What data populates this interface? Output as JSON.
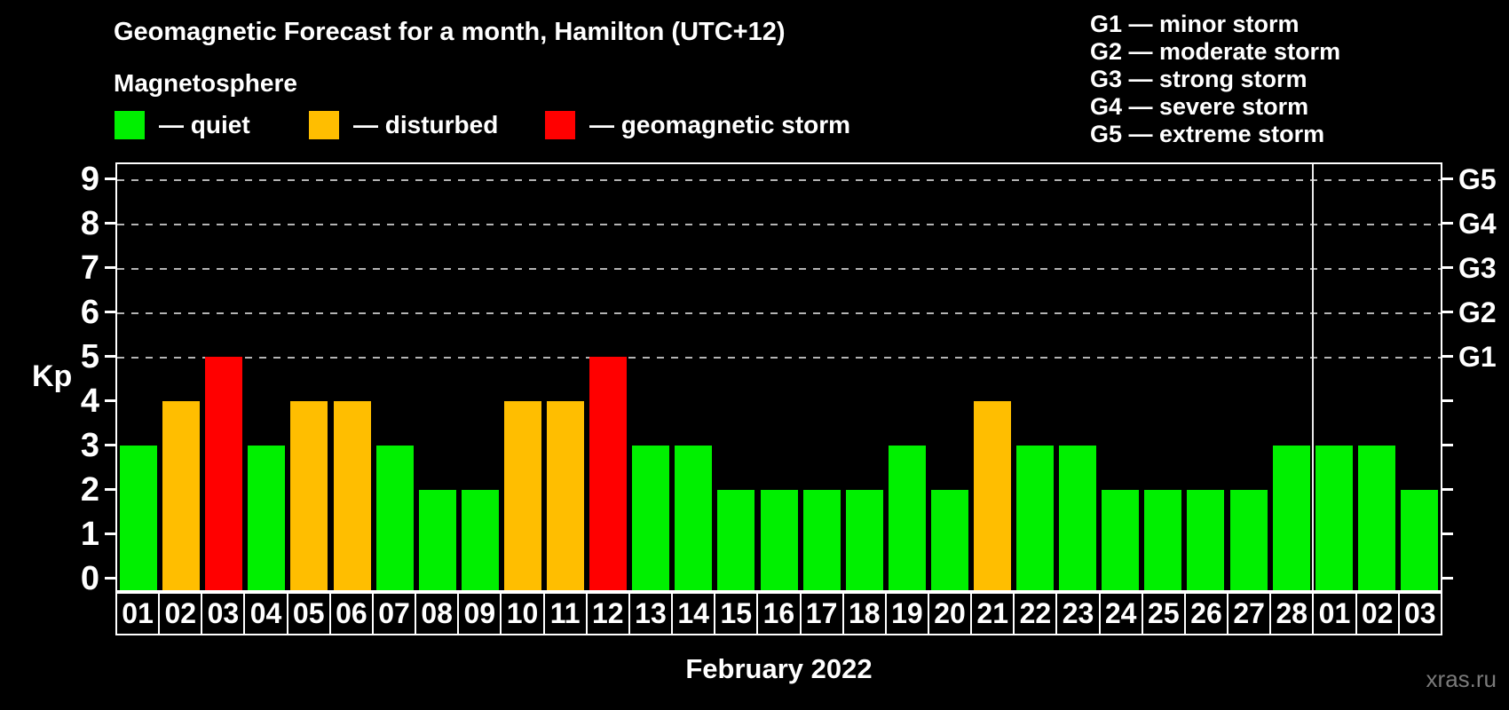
{
  "header": {
    "title": "Geomagnetic Forecast for a month, Hamilton (UTC+12)",
    "subtitle": "Magnetosphere",
    "legend": [
      {
        "key": "quiet",
        "label": "— quiet",
        "color": "#00f000"
      },
      {
        "key": "disturbed",
        "label": "— disturbed",
        "color": "#ffbe00"
      },
      {
        "key": "storm",
        "label": "— geomagnetic storm",
        "color": "#ff0000"
      }
    ],
    "g_scale_legend": [
      "G1 — minor storm",
      "G2 — moderate storm",
      "G3 — strong storm",
      "G4 — severe storm",
      "G5 — extreme storm"
    ]
  },
  "chart_data": {
    "type": "bar",
    "title": "Geomagnetic Forecast for a month, Hamilton (UTC+12)",
    "ylabel": "Kp",
    "xlabel": "February 2022",
    "ylim": [
      0,
      9
    ],
    "yticks": [
      0,
      1,
      2,
      3,
      4,
      5,
      6,
      7,
      8,
      9
    ],
    "gridlines_at": [
      5,
      6,
      7,
      8,
      9
    ],
    "grid": "dashed horizontal lines at storm levels G1–G5 only",
    "right_axis_labels": [
      {
        "value": 5,
        "label": "G1"
      },
      {
        "value": 6,
        "label": "G2"
      },
      {
        "value": 7,
        "label": "G3"
      },
      {
        "value": 8,
        "label": "G4"
      },
      {
        "value": 9,
        "label": "G5"
      }
    ],
    "categories": [
      "01",
      "02",
      "03",
      "04",
      "05",
      "06",
      "07",
      "08",
      "09",
      "10",
      "11",
      "12",
      "13",
      "14",
      "15",
      "16",
      "17",
      "18",
      "19",
      "20",
      "21",
      "22",
      "23",
      "24",
      "25",
      "26",
      "27",
      "28",
      "01",
      "02",
      "03"
    ],
    "values": [
      3,
      4,
      5,
      3,
      4,
      4,
      3,
      2,
      2,
      4,
      4,
      5,
      3,
      3,
      2,
      2,
      2,
      2,
      3,
      2,
      4,
      3,
      3,
      2,
      2,
      2,
      2,
      3,
      3,
      3,
      2
    ],
    "statuses": [
      "quiet",
      "disturbed",
      "storm",
      "quiet",
      "disturbed",
      "disturbed",
      "quiet",
      "quiet",
      "quiet",
      "disturbed",
      "disturbed",
      "storm",
      "quiet",
      "quiet",
      "quiet",
      "quiet",
      "quiet",
      "quiet",
      "quiet",
      "quiet",
      "disturbed",
      "quiet",
      "quiet",
      "quiet",
      "quiet",
      "quiet",
      "quiet",
      "quiet",
      "quiet",
      "quiet",
      "quiet"
    ],
    "colors": {
      "quiet": "#00f000",
      "disturbed": "#ffbe00",
      "storm": "#ff0000"
    },
    "month_separator_after_index": 27,
    "legend_position": "top-left"
  },
  "footer": {
    "xaxis_title": "February 2022",
    "watermark": "xras.ru"
  }
}
